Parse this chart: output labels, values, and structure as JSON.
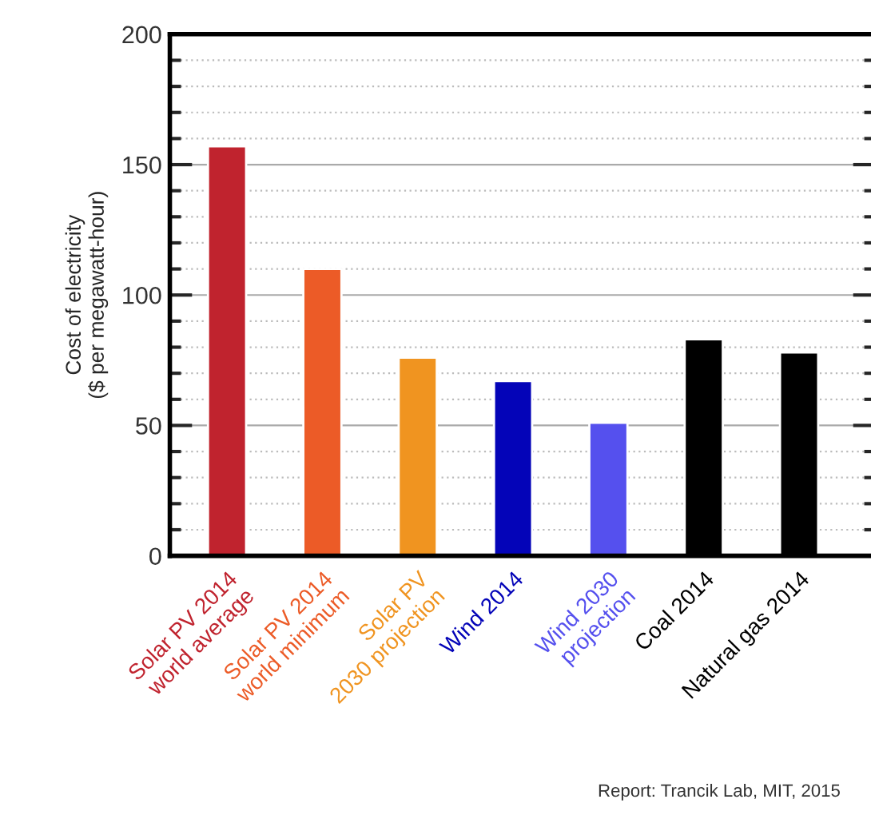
{
  "chart_data": {
    "type": "bar",
    "ylabel": "Cost of electricity\n($ per megawatt-hour)",
    "categories": [
      "Solar PV 2014\nworld average",
      "Solar PV 2014\nworld minimum",
      "Solar PV\n2030 projection",
      "Wind 2014",
      "Wind 2030\nprojection",
      "Coal 2014",
      "Natural gas 2014"
    ],
    "values": [
      157,
      110,
      76,
      67,
      51,
      83,
      78
    ],
    "colors": [
      "#c0232e",
      "#ec5b27",
      "#f09420",
      "#0404b8",
      "#5550ee",
      "#000000",
      "#000000"
    ],
    "ylim": [
      0,
      200
    ],
    "yticks": [
      0,
      50,
      100,
      150,
      200
    ],
    "grid": "y",
    "annotations": [
      "Report: Trancik Lab, MIT, 2015"
    ]
  }
}
